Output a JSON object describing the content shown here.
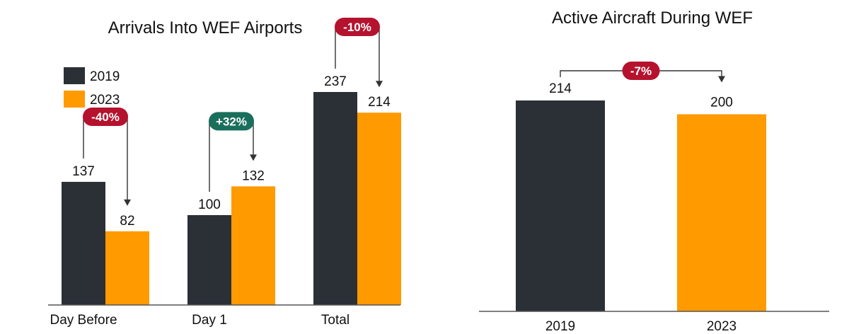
{
  "colors": {
    "series_2019": "#2b2f36",
    "series_2023": "#ff9a00",
    "badge_decrease": "#b5122e",
    "badge_increase": "#1a6e5c",
    "axis": "#555555",
    "bracket": "#333333"
  },
  "chart_data": [
    {
      "type": "bar",
      "title": "Arrivals Into WEF Airports",
      "categories": [
        "Day Before",
        "Day 1",
        "Total"
      ],
      "series": [
        {
          "name": "2019",
          "values": [
            137,
            100,
            237
          ]
        },
        {
          "name": "2023",
          "values": [
            82,
            132,
            214
          ]
        }
      ],
      "value_labels": [
        [
          "137",
          "100",
          "237"
        ],
        [
          "82",
          "132",
          "214"
        ]
      ],
      "changes": [
        {
          "label": "-40%",
          "direction": "decrease"
        },
        {
          "label": "+32%",
          "direction": "increase"
        },
        {
          "label": "-10%",
          "direction": "decrease"
        }
      ],
      "ylim": [
        0,
        300
      ],
      "legend": "top-left",
      "grid": false
    },
    {
      "type": "bar",
      "title": "Active Aircraft During WEF",
      "categories": [
        "2019",
        "2023"
      ],
      "values": [
        214,
        200
      ],
      "value_labels": [
        "214",
        "200"
      ],
      "changes": [
        {
          "label": "-7%",
          "direction": "decrease"
        }
      ],
      "ylim": [
        0,
        300
      ],
      "grid": false
    }
  ]
}
